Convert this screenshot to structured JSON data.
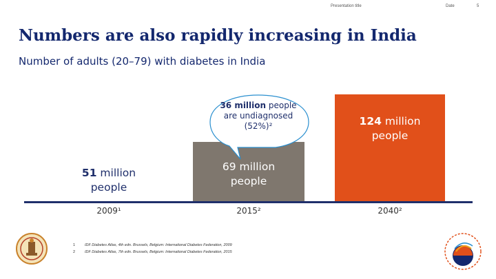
{
  "header": {
    "presentation_title": "Presentation title",
    "date": "Date",
    "page_number": "5"
  },
  "slide": {
    "title": "Numbers are also rapidly increasing in India",
    "subtitle": "Number of adults (20–79) with diabetes in India"
  },
  "chart_data": {
    "type": "bar",
    "categories": [
      "2009¹",
      "2015²",
      "2040²"
    ],
    "values": [
      51,
      69,
      124
    ],
    "bar_labels": [
      {
        "number": "51",
        "unit": " million",
        "line2": "people"
      },
      {
        "number": "69",
        "unit": " million",
        "line2": "people"
      },
      {
        "number": "124",
        "unit": " million",
        "line2": "people"
      }
    ],
    "colors": [
      "#ffffff",
      "#7f776e",
      "#e1501a"
    ],
    "annotation": {
      "number": "36 million",
      "rest": " people are undiagnosed (52%)²"
    },
    "grid": false
  },
  "footnotes": [
    {
      "num": "1",
      "text": "IDF Diabetes Atlas, 4th edn. Brussels, Belgium: International Diabetes Federation, 2009"
    },
    {
      "num": "2",
      "text": "IDF Diabetes Atlas, 7th edn. Brussels, Belgium: International Diabetes Federation, 2015"
    }
  ]
}
